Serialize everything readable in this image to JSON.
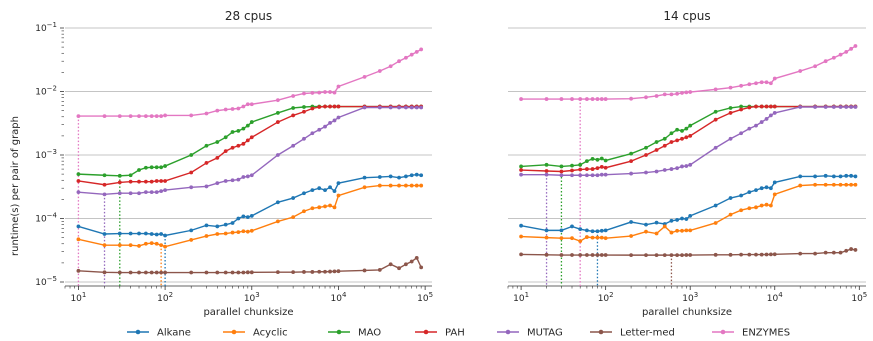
{
  "chart_data": {
    "type": "line",
    "x_scale": "log",
    "y_scale": "log",
    "xlim": [
      7,
      120000
    ],
    "ylim": [
      1e-05,
      0.1
    ],
    "x_ticks": [
      10,
      100,
      1000,
      10000,
      100000
    ],
    "x_tick_labels": [
      [
        "10",
        "1"
      ],
      [
        "10",
        "2"
      ],
      [
        "10",
        "3"
      ],
      [
        "10",
        "4"
      ],
      [
        "10",
        "5"
      ]
    ],
    "y_ticks": [
      1e-05,
      0.0001,
      0.001,
      0.01,
      0.1
    ],
    "y_tick_labels": [
      [
        "10",
        "−5"
      ],
      [
        "10",
        "−4"
      ],
      [
        "10",
        "−3"
      ],
      [
        "10",
        "−2"
      ],
      [
        "10",
        "−1"
      ]
    ],
    "ylabel": "runtime(s) per pair of graph",
    "xlabel": "parallel chunksize",
    "grid": "horizontal major lines",
    "legend_position": "bottom-center",
    "series_meta": [
      {
        "name": "Alkane",
        "color": "#1f77b4"
      },
      {
        "name": "Acyclic",
        "color": "#ff7f0e"
      },
      {
        "name": "MAO",
        "color": "#2ca02c"
      },
      {
        "name": "PAH",
        "color": "#d62728"
      },
      {
        "name": "MUTAG",
        "color": "#9467bd"
      },
      {
        "name": "Letter-med",
        "color": "#8c564b"
      },
      {
        "name": "ENZYMES",
        "color": "#e377c2"
      }
    ],
    "x": [
      10,
      20,
      30,
      40,
      50,
      60,
      70,
      80,
      90,
      100,
      200,
      300,
      400,
      500,
      600,
      700,
      800,
      900,
      1000,
      2000,
      3000,
      4000,
      5000,
      6000,
      7000,
      8000,
      9000,
      10000,
      20000,
      30000,
      40000,
      50000,
      60000,
      70000,
      80000,
      90000
    ],
    "panels": [
      {
        "title": "28 cpus",
        "series": [
          {
            "name": "Alkane",
            "values": [
              7.5e-05,
              5.7e-05,
              5.8e-05,
              5.8e-05,
              5.8e-05,
              5.8e-05,
              5.7e-05,
              5.6e-05,
              5.7e-05,
              5.4e-05,
              6.5e-05,
              7.8e-05,
              7.5e-05,
              8e-05,
              8.5e-05,
              0.0001,
              0.000108,
              0.000105,
              0.00011,
              0.00018,
              0.00021,
              0.00025,
              0.00028,
              0.0003,
              0.00028,
              0.00031,
              0.00027,
              0.00036,
              0.00044,
              0.00045,
              0.00046,
              0.00044,
              0.00046,
              0.00048,
              0.00049,
              0.00048
            ]
          },
          {
            "name": "Acyclic",
            "values": [
              4.7e-05,
              3.8e-05,
              3.8e-05,
              3.8e-05,
              3.7e-05,
              4e-05,
              4.1e-05,
              4e-05,
              3.8e-05,
              3.6e-05,
              4.6e-05,
              5.3e-05,
              5.7e-05,
              5.8e-05,
              6e-05,
              6.1e-05,
              6.3e-05,
              6.2e-05,
              6.4e-05,
              9e-05,
              0.000105,
              0.00013,
              0.000145,
              0.00015,
              0.000155,
              0.00016,
              0.00015,
              0.00023,
              0.00031,
              0.00033,
              0.00033,
              0.00033,
              0.00033,
              0.00033,
              0.00033,
              0.00033
            ]
          },
          {
            "name": "MAO",
            "values": [
              0.0005,
              0.00048,
              0.00047,
              0.00048,
              0.00058,
              0.00063,
              0.00064,
              0.00064,
              0.00064,
              0.00067,
              0.001,
              0.0014,
              0.0016,
              0.0019,
              0.0023,
              0.0024,
              0.0026,
              0.0029,
              0.0033,
              0.0046,
              0.0055,
              0.0057,
              0.0058,
              0.0058,
              0.0058,
              0.0058,
              0.0058,
              0.0058,
              0.0058,
              0.0058,
              0.0058,
              0.0058,
              0.0058,
              0.0058,
              0.0058,
              0.0058
            ]
          },
          {
            "name": "PAH",
            "values": [
              0.00039,
              0.00034,
              0.00037,
              0.00038,
              0.00038,
              0.00038,
              0.00038,
              0.00039,
              0.00039,
              0.00039,
              0.00053,
              0.00075,
              0.0009,
              0.00115,
              0.0013,
              0.0014,
              0.0015,
              0.0017,
              0.0019,
              0.0033,
              0.0042,
              0.0048,
              0.0054,
              0.0057,
              0.0058,
              0.0058,
              0.0058,
              0.0058,
              0.0058,
              0.0058,
              0.0058,
              0.0058,
              0.0058,
              0.0058,
              0.0058,
              0.0058
            ]
          },
          {
            "name": "MUTAG",
            "values": [
              0.00026,
              0.00024,
              0.00025,
              0.00025,
              0.00025,
              0.00026,
              0.00026,
              0.00026,
              0.00027,
              0.00028,
              0.00031,
              0.00032,
              0.00036,
              0.00039,
              0.0004,
              0.00041,
              0.00045,
              0.00046,
              0.00048,
              0.001,
              0.0014,
              0.0018,
              0.0022,
              0.0025,
              0.0028,
              0.0032,
              0.0035,
              0.0039,
              0.0056,
              0.0056,
              0.0056,
              0.0056,
              0.0056,
              0.0056,
              0.0056,
              0.0056
            ]
          },
          {
            "name": "Letter-med",
            "values": [
              1.5e-05,
              1.42e-05,
              1.41e-05,
              1.41e-05,
              1.41e-05,
              1.41e-05,
              1.41e-05,
              1.41e-05,
              1.41e-05,
              1.41e-05,
              1.41e-05,
              1.41e-05,
              1.41e-05,
              1.41e-05,
              1.41e-05,
              1.41e-05,
              1.41e-05,
              1.42e-05,
              1.42e-05,
              1.43e-05,
              1.43e-05,
              1.44e-05,
              1.44e-05,
              1.45e-05,
              1.45e-05,
              1.46e-05,
              1.47e-05,
              1.48e-05,
              1.52e-05,
              1.55e-05,
              1.9e-05,
              1.65e-05,
              1.9e-05,
              2.1e-05,
              2.4e-05,
              1.7e-05
            ]
          },
          {
            "name": "ENZYMES",
            "values": [
              0.0041,
              0.0041,
              0.0041,
              0.0041,
              0.0041,
              0.0041,
              0.0041,
              0.0041,
              0.0041,
              0.0042,
              0.0042,
              0.0045,
              0.005,
              0.0052,
              0.0053,
              0.0054,
              0.0058,
              0.0063,
              0.0063,
              0.0073,
              0.0085,
              0.0093,
              0.0095,
              0.0096,
              0.0098,
              0.0098,
              0.0096,
              0.012,
              0.017,
              0.021,
              0.025,
              0.03,
              0.034,
              0.038,
              0.042,
              0.046
            ]
          }
        ],
        "markers": [
          {
            "series": "ENZYMES",
            "x": 10
          },
          {
            "series": "MUTAG",
            "x": 20
          },
          {
            "series": "MAO",
            "x": 30
          },
          {
            "series": "Acyclic",
            "x": 90
          },
          {
            "series": "Alkane",
            "x": 100
          }
        ]
      },
      {
        "title": "14 cpus",
        "series": [
          {
            "name": "Alkane",
            "values": [
              7.7e-05,
              6.5e-05,
              6.5e-05,
              7.5e-05,
              6.8e-05,
              6.5e-05,
              6.3e-05,
              6.3e-05,
              6.4e-05,
              6.5e-05,
              8.8e-05,
              8e-05,
              8.6e-05,
              8.2e-05,
              9.2e-05,
              9.5e-05,
              0.0001,
              9.8e-05,
              0.00011,
              0.00016,
              0.00021,
              0.00023,
              0.00026,
              0.00028,
              0.0003,
              0.00031,
              0.0003,
              0.00037,
              0.00046,
              0.00046,
              0.00047,
              0.00046,
              0.00046,
              0.00047,
              0.00047,
              0.00046
            ]
          },
          {
            "name": "Acyclic",
            "values": [
              5.2e-05,
              5e-05,
              4.9e-05,
              4.9e-05,
              4.4e-05,
              5.1e-05,
              5e-05,
              5e-05,
              5e-05,
              4.9e-05,
              5.3e-05,
              6.2e-05,
              5.8e-05,
              7.5e-05,
              6e-05,
              6.4e-05,
              6.4e-05,
              6.5e-05,
              6.5e-05,
              8.5e-05,
              0.000115,
              0.000135,
              0.000145,
              0.00015,
              0.00016,
              0.000165,
              0.00016,
              0.00024,
              0.00033,
              0.00034,
              0.00034,
              0.00034,
              0.00034,
              0.00034,
              0.00034,
              0.00034
            ]
          },
          {
            "name": "MAO",
            "values": [
              0.00066,
              0.0007,
              0.00066,
              0.00068,
              0.0007,
              0.0008,
              0.00087,
              0.00084,
              0.00088,
              0.00082,
              0.00105,
              0.0013,
              0.0016,
              0.0018,
              0.0022,
              0.0025,
              0.0024,
              0.0026,
              0.0029,
              0.0048,
              0.0055,
              0.0058,
              0.0058,
              0.0058,
              0.0058,
              0.0058,
              0.0058,
              0.0058,
              0.0058,
              0.0058,
              0.0058,
              0.0058,
              0.0058,
              0.0058,
              0.0058,
              0.0058
            ]
          },
          {
            "name": "PAH",
            "values": [
              0.00058,
              0.00056,
              0.00055,
              0.00057,
              0.00059,
              0.0006,
              0.0006,
              0.00062,
              0.00065,
              0.00063,
              0.0008,
              0.001,
              0.0012,
              0.0014,
              0.0016,
              0.0017,
              0.0018,
              0.0019,
              0.002,
              0.0036,
              0.0046,
              0.0052,
              0.0056,
              0.0058,
              0.0058,
              0.0058,
              0.0058,
              0.0058,
              0.0058,
              0.0058,
              0.0058,
              0.0058,
              0.0058,
              0.0058,
              0.0058,
              0.0058
            ]
          },
          {
            "name": "MUTAG",
            "values": [
              0.00049,
              0.00049,
              0.00048,
              0.00048,
              0.00048,
              0.00048,
              0.00048,
              0.00048,
              0.00049,
              0.00049,
              0.00051,
              0.00053,
              0.00055,
              0.00058,
              0.0006,
              0.00062,
              0.00066,
              0.00067,
              0.0007,
              0.0013,
              0.0018,
              0.0022,
              0.0026,
              0.0029,
              0.0033,
              0.0037,
              0.0042,
              0.0046,
              0.0057,
              0.0057,
              0.0057,
              0.0057,
              0.0057,
              0.0057,
              0.0057,
              0.0057
            ]
          },
          {
            "name": "Letter-med",
            "values": [
              2.72e-05,
              2.68e-05,
              2.66e-05,
              2.66e-05,
              2.66e-05,
              2.66e-05,
              2.66e-05,
              2.66e-05,
              2.66e-05,
              2.66e-05,
              2.65e-05,
              2.65e-05,
              2.65e-05,
              2.65e-05,
              2.65e-05,
              2.65e-05,
              2.65e-05,
              2.66e-05,
              2.66e-05,
              2.68e-05,
              2.68e-05,
              2.7e-05,
              2.7e-05,
              2.7e-05,
              2.7e-05,
              2.71e-05,
              2.72e-05,
              2.73e-05,
              2.8e-05,
              2.8e-05,
              2.9e-05,
              2.9e-05,
              2.9e-05,
              3.1e-05,
              3.3e-05,
              3.2e-05
            ]
          },
          {
            "name": "ENZYMES",
            "values": [
              0.0076,
              0.0076,
              0.0076,
              0.0076,
              0.0076,
              0.0076,
              0.0076,
              0.0076,
              0.0076,
              0.0076,
              0.0077,
              0.0081,
              0.0085,
              0.009,
              0.009,
              0.0092,
              0.0095,
              0.0097,
              0.0098,
              0.0108,
              0.0115,
              0.0123,
              0.013,
              0.0135,
              0.014,
              0.014,
              0.0135,
              0.016,
              0.021,
              0.025,
              0.03,
              0.034,
              0.038,
              0.042,
              0.047,
              0.052
            ]
          }
        ],
        "markers": [
          {
            "series": "MUTAG",
            "x": 20
          },
          {
            "series": "MAO",
            "x": 30
          },
          {
            "series": "ENZYMES",
            "x": 50
          },
          {
            "series": "Alkane",
            "x": 80
          },
          {
            "series": "Letter-med",
            "x": 600
          }
        ]
      }
    ]
  }
}
